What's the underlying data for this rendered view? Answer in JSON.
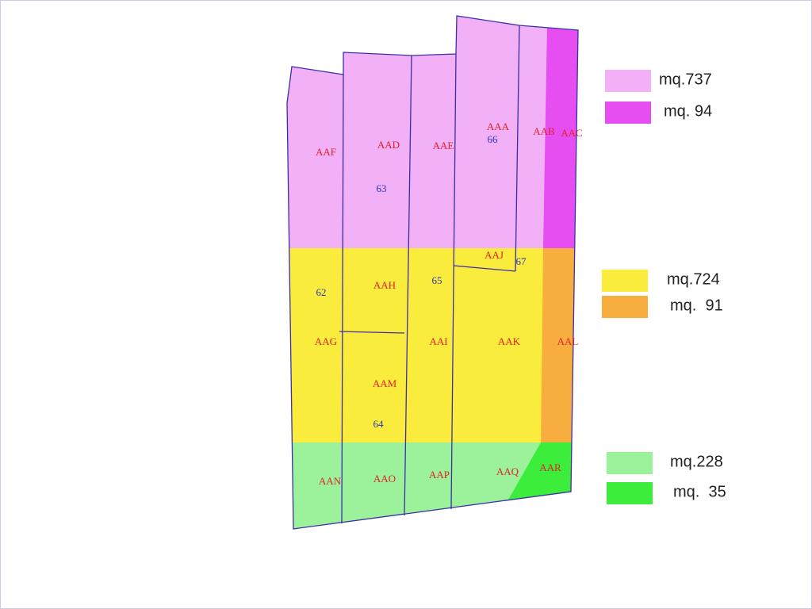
{
  "parcels": [
    "AAA",
    "AAB",
    "AAC",
    "AAD",
    "AAE",
    "AAF",
    "AAG",
    "AAH",
    "AAI",
    "AAJ",
    "AAK",
    "AAL",
    "AAM",
    "AAN",
    "AAO",
    "AAP",
    "AAQ",
    "AAR"
  ],
  "numbers": [
    "62",
    "63",
    "64",
    "65",
    "66",
    "67"
  ],
  "legend": [
    {
      "label": "mq.737",
      "color": "#f2b0f7"
    },
    {
      "label": "mq. 94",
      "color": "#e64ef2"
    },
    {
      "label": "mq.724",
      "color": "#f9ec3c"
    },
    {
      "label": "mq.  91",
      "color": "#f8ae3e"
    },
    {
      "label": "mq.228",
      "color": "#9cf29a"
    },
    {
      "label": "mq.  35",
      "color": "#3ded3b"
    }
  ]
}
